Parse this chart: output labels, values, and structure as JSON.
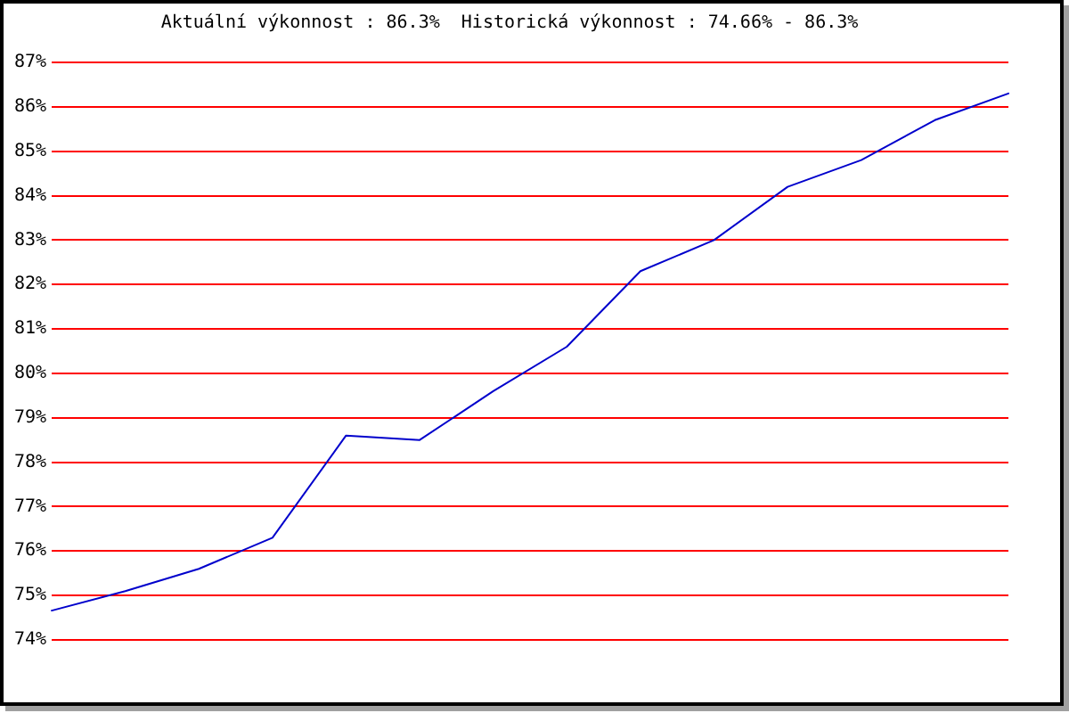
{
  "chart_data": {
    "type": "line",
    "title": "Aktuální výkonnost : 86.3%  Historická výkonnost : 74.66% - 86.3%",
    "categories": [
      null,
      null,
      null,
      null,
      null,
      null,
      null,
      null,
      null,
      null,
      null,
      null,
      null,
      null
    ],
    "values": [
      74.66,
      75.1,
      75.6,
      76.3,
      78.6,
      78.5,
      79.6,
      80.6,
      82.3,
      83.0,
      84.2,
      84.8,
      85.7,
      86.3
    ],
    "color": "#0000cc",
    "ylim": [
      74,
      87
    ],
    "yticks": [
      {
        "value": 74,
        "label": "74%"
      },
      {
        "value": 75,
        "label": "75%"
      },
      {
        "value": 76,
        "label": "76%"
      },
      {
        "value": 77,
        "label": "77%"
      },
      {
        "value": 78,
        "label": "78%"
      },
      {
        "value": 79,
        "label": "79%"
      },
      {
        "value": 80,
        "label": "80%"
      },
      {
        "value": 81,
        "label": "81%"
      },
      {
        "value": 82,
        "label": "82%"
      },
      {
        "value": 83,
        "label": "83%"
      },
      {
        "value": 84,
        "label": "84%"
      },
      {
        "value": 85,
        "label": "85%"
      },
      {
        "value": 86,
        "label": "86%"
      },
      {
        "value": 87,
        "label": "87%"
      }
    ],
    "grid": "y",
    "legend": false,
    "marker": "none",
    "line_style": "solid",
    "tick_labels": "y"
  }
}
